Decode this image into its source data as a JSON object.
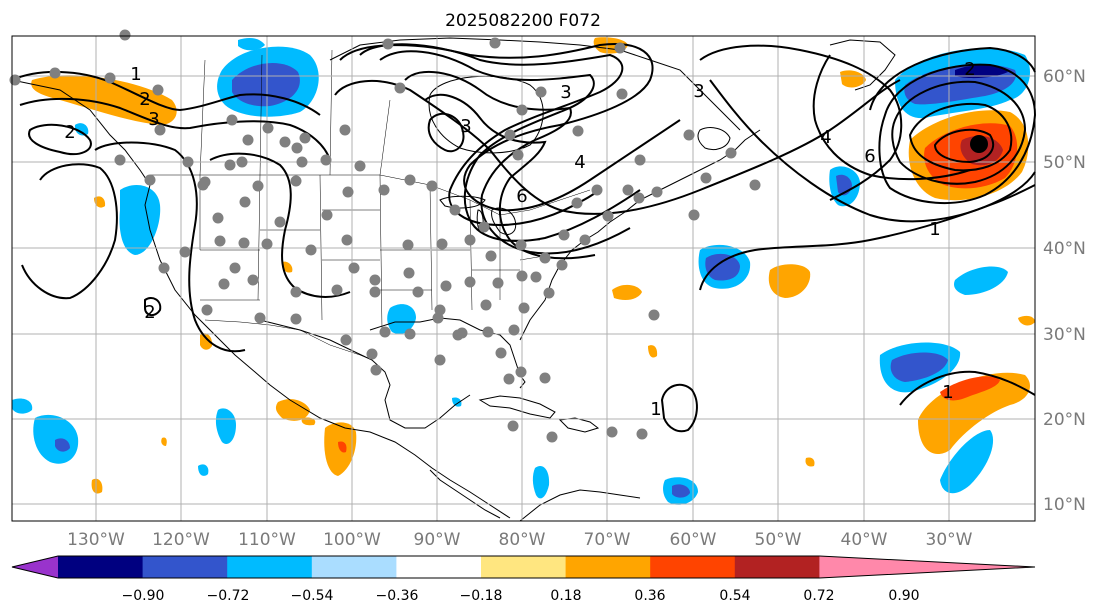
{
  "figure": {
    "title": "2025082200 F072"
  },
  "map": {
    "lat_labels": [
      "60°N",
      "50°N",
      "40°N",
      "30°N",
      "20°N",
      "10°N"
    ],
    "lon_labels": [
      "130°W",
      "120°W",
      "110°W",
      "100°W",
      "90°W",
      "80°W",
      "70°W",
      "60°W",
      "50°W",
      "40°W",
      "30°W"
    ],
    "contour_labels": [
      "1",
      "2",
      "3",
      "3",
      "3",
      "3",
      "4",
      "6",
      "6",
      "4",
      "1",
      "1",
      "2",
      "2",
      "1",
      "2"
    ],
    "colors": {
      "land_outline": "#000000",
      "grid": "#b0b0b0",
      "station_dot": "#808080",
      "contour": "#000000"
    }
  },
  "colorbar": {
    "tick_labels": [
      "−0.90",
      "−0.72",
      "−0.54",
      "−0.36",
      "−0.18",
      "0.18",
      "0.36",
      "0.54",
      "0.72",
      "0.90"
    ],
    "colors": [
      "#9933cc",
      "#000080",
      "#3355cc",
      "#00bbff",
      "#aaddff",
      "#ffffff",
      "#ffe680",
      "#ffa500",
      "#ff4400",
      "#b22222",
      "#ff88aa"
    ]
  }
}
